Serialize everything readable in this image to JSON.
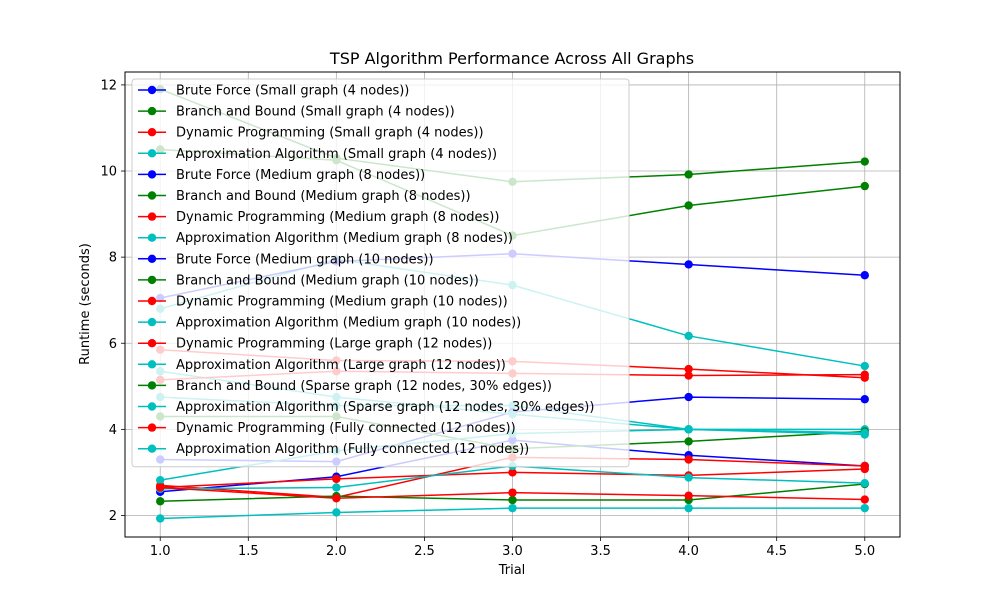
{
  "chart_data": {
    "type": "line",
    "title": "TSP Algorithm Performance Across All Graphs",
    "xlabel": "Trial",
    "ylabel": "Runtime (seconds)",
    "xlim": [
      0.8,
      5.2
    ],
    "ylim": [
      1.5,
      12.3
    ],
    "x": [
      1,
      2,
      3,
      4,
      5
    ],
    "x_ticks": [
      1.0,
      1.5,
      2.0,
      2.5,
      3.0,
      3.5,
      4.0,
      4.5,
      5.0
    ],
    "y_ticks": [
      2,
      4,
      6,
      8,
      10,
      12
    ],
    "grid": true,
    "legend_position": "upper-left",
    "series": [
      {
        "name": "Brute Force (Small graph (4 nodes))",
        "color": "#0000ff",
        "values": [
          2.55,
          2.9,
          3.75,
          3.4,
          3.15
        ]
      },
      {
        "name": "Branch and Bound (Small graph (4 nodes))",
        "color": "#008000",
        "values": [
          11.9,
          10.3,
          9.75,
          9.92,
          10.22
        ]
      },
      {
        "name": "Dynamic Programming (Small graph (4 nodes))",
        "color": "#ff0000",
        "values": [
          2.7,
          2.42,
          3.35,
          3.3,
          3.15
        ]
      },
      {
        "name": "Approximation Algorithm (Small graph (4 nodes))",
        "color": "#00bfbf",
        "values": [
          4.75,
          4.55,
          4.55,
          4.0,
          4.0
        ]
      },
      {
        "name": "Brute Force (Medium graph (8 nodes))",
        "color": "#0000ff",
        "values": [
          3.3,
          3.25,
          4.4,
          4.75,
          4.7
        ]
      },
      {
        "name": "Branch and Bound (Medium graph (8 nodes))",
        "color": "#008000",
        "values": [
          10.5,
          10.25,
          8.5,
          9.2,
          9.65
        ]
      },
      {
        "name": "Dynamic Programming (Medium graph (8 nodes))",
        "color": "#ff0000",
        "values": [
          2.65,
          2.85,
          3.0,
          2.93,
          3.08
        ]
      },
      {
        "name": "Approximation Algorithm (Medium graph (8 nodes))",
        "color": "#00bfbf",
        "values": [
          6.8,
          7.95,
          7.35,
          6.17,
          5.47
        ]
      },
      {
        "name": "Brute Force (Medium graph (10 nodes))",
        "color": "#0000ff",
        "values": [
          7.05,
          7.9,
          8.08,
          7.83,
          7.58
        ]
      },
      {
        "name": "Branch and Bound (Medium graph (10 nodes))",
        "color": "#008000",
        "values": [
          4.3,
          4.3,
          3.55,
          3.72,
          3.95
        ]
      },
      {
        "name": "Dynamic Programming (Medium graph (10 nodes))",
        "color": "#ff0000",
        "values": [
          5.85,
          5.6,
          5.58,
          5.4,
          5.2
        ]
      },
      {
        "name": "Approximation Algorithm (Medium graph (10 nodes))",
        "color": "#00bfbf",
        "values": [
          5.35,
          4.75,
          4.35,
          4.0,
          3.88
        ]
      },
      {
        "name": "Dynamic Programming (Large graph (12 nodes))",
        "color": "#ff0000",
        "values": [
          5.15,
          5.35,
          5.3,
          5.25,
          5.27
        ]
      },
      {
        "name": "Approximation Algorithm (Large graph (12 nodes))",
        "color": "#00bfbf",
        "values": [
          2.82,
          3.5,
          3.9,
          4.0,
          3.92
        ]
      },
      {
        "name": "Branch and Bound (Sparse graph (12 nodes, 30% edges))",
        "color": "#008000",
        "values": [
          2.33,
          2.45,
          2.36,
          2.36,
          2.73
        ]
      },
      {
        "name": "Approximation Algorithm (Sparse graph (12 nodes, 30% edges))",
        "color": "#00bfbf",
        "values": [
          2.62,
          2.65,
          3.15,
          2.88,
          2.75
        ]
      },
      {
        "name": "Dynamic Programming (Fully connected (12 nodes))",
        "color": "#ff0000",
        "values": [
          2.65,
          2.4,
          2.53,
          2.46,
          2.37
        ]
      },
      {
        "name": "Approximation Algorithm (Fully connected (12 nodes))",
        "color": "#00bfbf",
        "values": [
          1.93,
          2.07,
          2.17,
          2.17,
          2.17
        ]
      }
    ]
  }
}
